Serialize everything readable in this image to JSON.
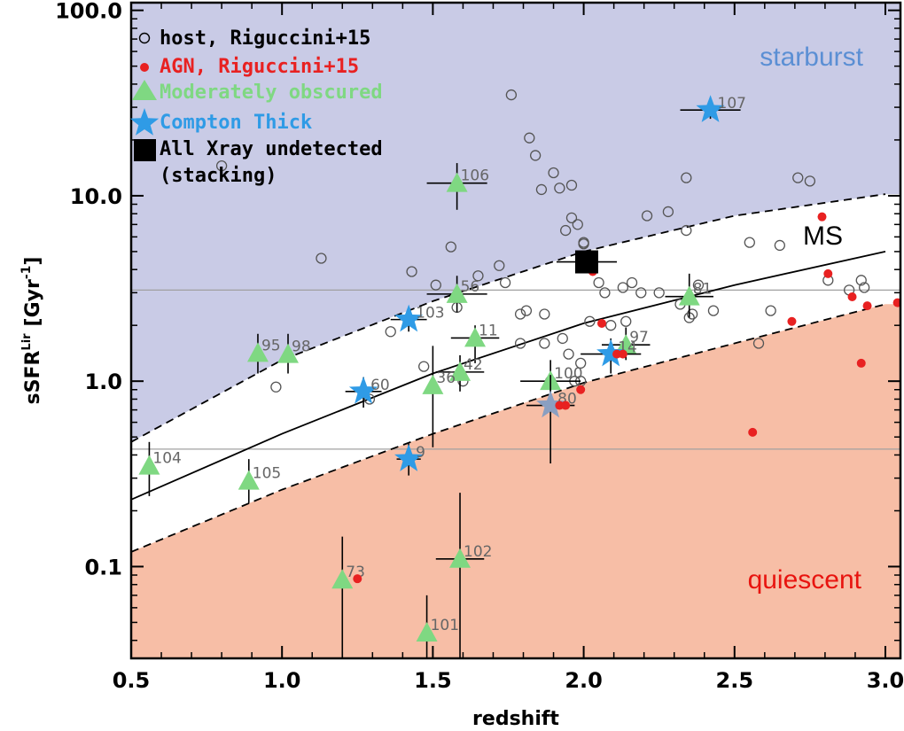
{
  "chart_data": {
    "type": "scatter",
    "xlabel": "redshift",
    "ylabel": "sSFR",
    "ylabel_sup": "Lir",
    "ylabel_unit": "[Gyr",
    "ylabel_unit_sup": "-1",
    "ylabel_unit_close": "]",
    "xlim": [
      0.5,
      3.05
    ],
    "ylim": [
      0.032,
      110
    ],
    "yscale": "log",
    "x_ticks": [
      0.5,
      1.0,
      1.5,
      2.0,
      2.5,
      3.0
    ],
    "x_tick_labels": [
      "0.5",
      "1.0",
      "1.5",
      "2.0",
      "2.5",
      "3.0"
    ],
    "y_ticks": [
      0.1,
      1.0,
      10.0,
      100.0
    ],
    "y_tick_labels": [
      "0.1",
      "1.0",
      "10.0",
      "100.0"
    ],
    "region_labels": {
      "starburst": "starburst",
      "quiescent": "quiescent",
      "ms": "MS"
    },
    "colors": {
      "starburst": "#c9cbe6",
      "quiescent": "#f7bea6",
      "starburst_text": "#5b8fd4",
      "quiescent_text": "#e8140f",
      "agn": "#e82121",
      "triangle": "#7fd882",
      "star": "#2f9be6",
      "host": "#555555"
    },
    "legend": {
      "placement": "top-left",
      "entries": [
        {
          "label": "host, Riguccini+15",
          "marker": "open-circle",
          "color": "#000000"
        },
        {
          "label": "AGN, Riguccini+15",
          "marker": "filled-circle",
          "color": "#e82121"
        },
        {
          "label": "Moderately obscured",
          "marker": "triangle",
          "color": "#7fd882"
        },
        {
          "label": "Compton Thick",
          "marker": "star",
          "color": "#2f9be6"
        },
        {
          "label": "All Xray undetected",
          "label2": "(stacking)",
          "marker": "square",
          "color": "#000000"
        }
      ]
    },
    "main_sequence": {
      "x": [
        0.5,
        1.0,
        1.5,
        2.0,
        2.5,
        3.0
      ],
      "y": [
        0.23,
        0.52,
        1.1,
        2.05,
        3.3,
        5.0
      ]
    },
    "ms_upper": {
      "x": [
        0.5,
        1.0,
        1.5,
        2.0,
        2.5,
        3.0
      ],
      "y": [
        0.47,
        1.3,
        2.7,
        5.0,
        7.8,
        10.2
      ]
    },
    "ms_lower": {
      "x": [
        0.5,
        1.0,
        1.5,
        2.0,
        2.5,
        3.0
      ],
      "y": [
        0.12,
        0.26,
        0.52,
        0.98,
        1.6,
        2.6
      ]
    },
    "reference_lines": [
      3.1,
      0.43
    ],
    "host": {
      "x": [
        0.8,
        1.13,
        1.36,
        1.43,
        1.47,
        1.51,
        1.56,
        1.58,
        1.6,
        1.65,
        1.72,
        1.74,
        1.76,
        1.79,
        1.79,
        1.81,
        1.82,
        1.84,
        1.86,
        1.87,
        1.87,
        1.89,
        1.9,
        1.92,
        1.93,
        1.94,
        1.95,
        1.96,
        1.96,
        1.97,
        1.98,
        1.99,
        1.99,
        2.0,
        2.0,
        2.02,
        2.05,
        2.07,
        2.09,
        2.13,
        2.14,
        2.16,
        2.19,
        2.21,
        2.25,
        2.28,
        2.32,
        2.34,
        2.34,
        2.35,
        2.36,
        2.38,
        2.43,
        2.55,
        2.58,
        2.62,
        2.65,
        2.71,
        2.75,
        2.81,
        2.88,
        2.92,
        2.93,
        0.98,
        1.29
      ],
      "y": [
        14.5,
        4.6,
        1.85,
        3.9,
        1.2,
        3.3,
        5.3,
        2.5,
        1.0,
        3.7,
        4.2,
        3.4,
        35,
        1.6,
        2.3,
        2.4,
        20.5,
        16.5,
        10.8,
        1.6,
        2.3,
        1.0,
        13.3,
        11.0,
        1.7,
        6.5,
        1.4,
        11.4,
        7.6,
        1.0,
        7.0,
        1.25,
        1.0,
        5.6,
        5.5,
        2.1,
        3.4,
        3.0,
        2.0,
        3.2,
        2.1,
        3.4,
        3.0,
        7.8,
        3.0,
        8.2,
        2.6,
        6.5,
        12.5,
        2.2,
        2.3,
        3.3,
        2.4,
        5.6,
        1.6,
        2.4,
        5.4,
        12.5,
        12.0,
        3.5,
        3.1,
        3.5,
        3.2,
        0.93,
        0.8
      ]
    },
    "agn": {
      "x": [
        2.03,
        2.06,
        1.99,
        2.11,
        1.92,
        2.56,
        2.69,
        2.79,
        2.81,
        2.89,
        2.92,
        2.94,
        3.04,
        1.25,
        2.13,
        1.94
      ],
      "y": [
        3.9,
        2.05,
        0.9,
        1.4,
        0.74,
        0.53,
        2.1,
        7.7,
        3.8,
        2.85,
        1.25,
        2.55,
        2.65,
        0.086,
        1.4,
        0.74
      ]
    },
    "triangles": {
      "id": [
        "104",
        "105",
        "95",
        "98",
        "106",
        "56",
        "11",
        "42",
        "36",
        "73",
        "102",
        "101",
        "100",
        "97",
        "81"
      ],
      "x": [
        0.56,
        0.89,
        0.92,
        1.02,
        1.58,
        1.58,
        1.64,
        1.59,
        1.5,
        1.2,
        1.59,
        1.48,
        1.89,
        2.14,
        2.35
      ],
      "y": [
        0.35,
        0.29,
        1.42,
        1.4,
        11.7,
        2.95,
        1.71,
        1.12,
        0.95,
        0.085,
        0.11,
        0.044,
        1.0,
        1.57,
        2.86
      ],
      "xerr": [
        0.0,
        0.0,
        0.0,
        0.0,
        0.1,
        0.1,
        0.08,
        0.08,
        0.0,
        0.0,
        0.08,
        0.0,
        0.1,
        0.08,
        0.08
      ],
      "ylo": [
        0.24,
        0.22,
        1.1,
        1.1,
        8.4,
        2.35,
        1.25,
        0.88,
        0.44,
        0.032,
        0.032,
        0.032,
        0.75,
        1.3,
        2.2
      ],
      "yhi": [
        0.47,
        0.38,
        1.8,
        1.8,
        15.0,
        3.7,
        2.0,
        1.38,
        1.55,
        0.145,
        0.25,
        0.07,
        1.3,
        1.95,
        3.8
      ]
    },
    "stars": {
      "id": [
        "107",
        "103",
        "60",
        "9",
        "14",
        "80"
      ],
      "x": [
        2.42,
        1.42,
        1.27,
        1.42,
        2.09,
        1.89
      ],
      "y": [
        29.0,
        2.15,
        0.88,
        0.38,
        1.4,
        0.74
      ],
      "xerr": [
        0.1,
        0.06,
        0.06,
        0.04,
        0.1,
        0.08
      ],
      "ylo": [
        26.0,
        1.85,
        0.72,
        0.31,
        1.1,
        0.36
      ],
      "yhi": [
        31.5,
        2.5,
        1.05,
        0.46,
        1.7,
        1.08
      ],
      "color": [
        "#2f9be6",
        "#2f9be6",
        "#2f9be6",
        "#2f9be6",
        "#2f9be6",
        "#8a9fc1"
      ]
    },
    "stack": {
      "x": 2.01,
      "y": 4.4,
      "xerr": 0.1
    }
  }
}
